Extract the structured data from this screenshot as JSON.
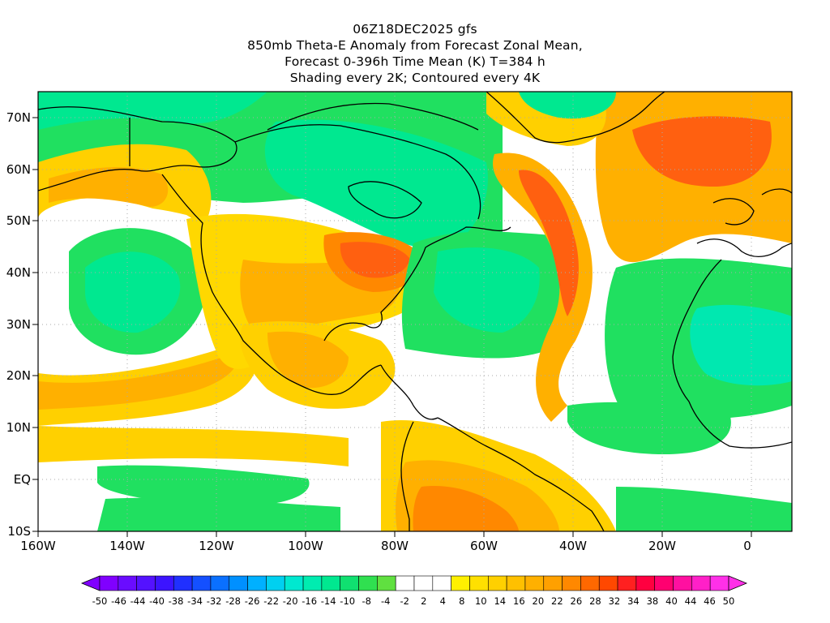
{
  "titles": {
    "line1": "06Z18DEC2025 gfs",
    "line2": "850mb Theta-E Anomaly from Forecast Zonal Mean,",
    "line3": "Forecast 0-396h Time Mean (K) T=384 h",
    "line4": "Shading every 2K; Contoured every 4K"
  },
  "axes": {
    "y_ticks": [
      "70N",
      "60N",
      "50N",
      "40N",
      "30N",
      "20N",
      "10N",
      "EQ",
      "10S"
    ],
    "x_ticks": [
      "160W",
      "140W",
      "120W",
      "100W",
      "80W",
      "60W",
      "40W",
      "20W",
      "0"
    ]
  },
  "colorbar": {
    "labels": [
      "-50",
      "-46",
      "-44",
      "-40",
      "-38",
      "-34",
      "-32",
      "-28",
      "-26",
      "-22",
      "-20",
      "-16",
      "-14",
      "-10",
      "-8",
      "-4",
      "-2",
      "2",
      "4",
      "8",
      "10",
      "14",
      "16",
      "20",
      "22",
      "26",
      "28",
      "32",
      "34",
      "38",
      "40",
      "44",
      "46",
      "50"
    ],
    "colors": [
      "#8000ff",
      "#6a0cff",
      "#5412ff",
      "#3c14ff",
      "#2030ff",
      "#1450ff",
      "#0a70ff",
      "#0090ff",
      "#00b0ff",
      "#00d0f0",
      "#00e8d0",
      "#00ecb0",
      "#00e890",
      "#10e070",
      "#30e050",
      "#60e040",
      "#ffffff",
      "#ffffff",
      "#ffffff",
      "#fff000",
      "#ffe000",
      "#ffd000",
      "#ffc000",
      "#ffb000",
      "#ffa000",
      "#ff8800",
      "#ff6800",
      "#ff4800",
      "#ff2020",
      "#ff0040",
      "#ff0070",
      "#ff10a0",
      "#ff20c8",
      "#ff30e8"
    ]
  },
  "palette": {
    "green": "#00e070",
    "teal": "#00e8b0",
    "white": "#ffffff",
    "yellow": "#ffd800",
    "orange": "#ffa000",
    "red": "#ff6010"
  }
}
